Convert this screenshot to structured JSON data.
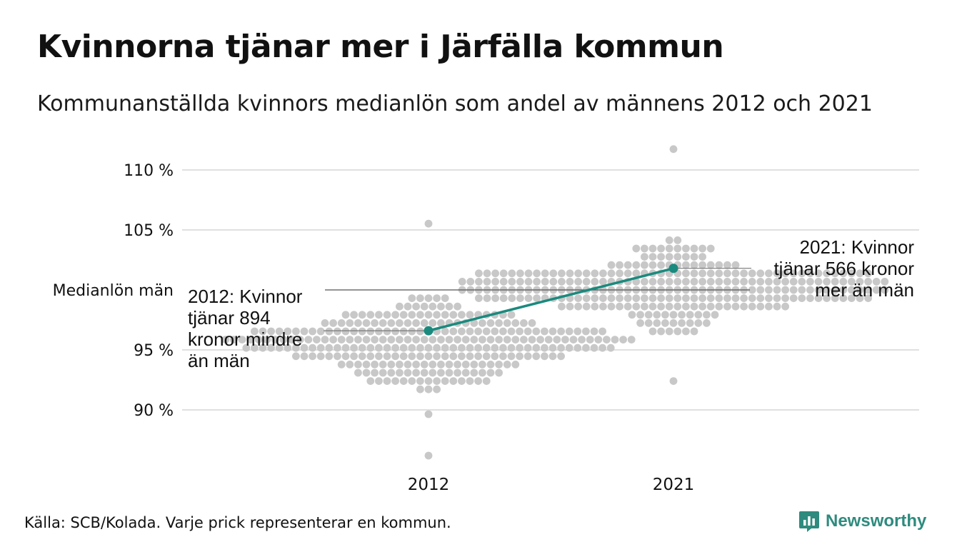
{
  "header": {
    "title": "Kvinnorna tjänar mer i Järfälla kommun",
    "subtitle": "Kommunanställda kvinnors medianlön som andel av männens 2012 och 2021"
  },
  "footer": {
    "source": "Källa: SCB/Kolada. Varje prick representerar en kommun.",
    "brand": "Newsworthy"
  },
  "colors": {
    "dots": "#c8c8c8",
    "highlight": "#1a8a7e",
    "gridline": "#e0e0e0",
    "reference_line": "#555555",
    "brand": "#2e8b7e"
  },
  "chart_data": {
    "type": "scatter",
    "subtype": "beeswarm",
    "title": "Kvinnorna tjänar mer i Järfälla kommun",
    "subtitle": "Kommunanställda kvinnors medianlön som andel av männens 2012 och 2021",
    "categories": [
      "2012",
      "2021"
    ],
    "y_unit": "%",
    "ylim": [
      86,
      111
    ],
    "y_ticks": [
      90,
      95,
      105,
      110
    ],
    "y_tick_labels": [
      "90 %",
      "95 %",
      "105 %",
      "110 %"
    ],
    "reference_line": {
      "value": 100,
      "label": "Medianlön män"
    },
    "grid": true,
    "distribution_ranges": {
      "2012": {
        "min": 86.5,
        "max": 105.2,
        "center": 95.4
      },
      "2021": {
        "min": 92.6,
        "max": 111.4,
        "center": 100.2
      }
    },
    "highlight": {
      "name": "Järfälla",
      "values": [
        96.6,
        101.8
      ],
      "annotations": [
        "2012: Kvinnor\ntjänar 894\nkronor mindre\nän män",
        "2021: Kvinnor\ntjänar 566 kronor\nmer än män"
      ]
    }
  }
}
